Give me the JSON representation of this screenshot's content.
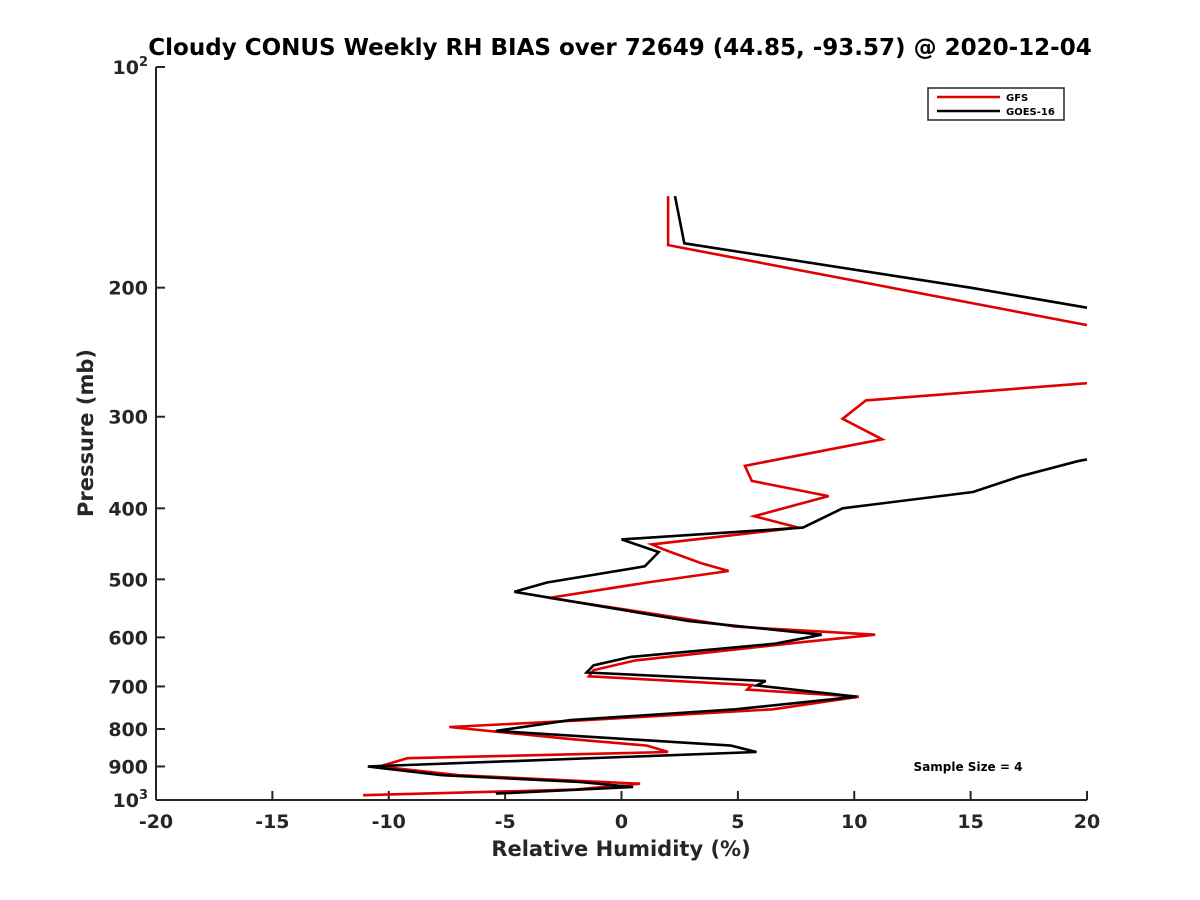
{
  "chart_data": {
    "type": "line",
    "title": "Cloudy CONUS Weekly RH BIAS over 72649 (44.85, -93.57) @ 2020-12-04",
    "xlabel": "Relative Humidity (%)",
    "ylabel": "Pressure (mb)",
    "xlim": [
      -20,
      20
    ],
    "ylim": [
      100,
      1000
    ],
    "yscale": "log",
    "y_reversed": true,
    "grid": false,
    "legend_position": "top-right",
    "x_ticks": [
      "-20",
      "-15",
      "-10",
      "-5",
      "0",
      "5",
      "10",
      "15",
      "20"
    ],
    "y_ticks": [
      {
        "value": 100,
        "base": "10",
        "exp": "2"
      },
      {
        "value": 200,
        "label": "200"
      },
      {
        "value": 300,
        "label": "300"
      },
      {
        "value": 400,
        "label": "400"
      },
      {
        "value": 500,
        "label": "500"
      },
      {
        "value": 600,
        "label": "600"
      },
      {
        "value": 700,
        "label": "700"
      },
      {
        "value": 800,
        "label": "800"
      },
      {
        "value": 900,
        "label": "900"
      },
      {
        "value": 1000,
        "base": "10",
        "exp": "3"
      }
    ],
    "annotation": "Sample Size = 4",
    "series": [
      {
        "name": "GFS",
        "color": "#e00000",
        "points": [
          [
            2,
            150
          ],
          [
            2,
            175
          ],
          [
            20,
            225
          ],
          [
            null,
            null
          ],
          [
            20,
            270
          ],
          [
            10.5,
            285
          ],
          [
            9.5,
            302
          ],
          [
            11.2,
            322
          ],
          [
            5.3,
            350
          ],
          [
            5.6,
            367
          ],
          [
            8.9,
            385
          ],
          [
            5.7,
            410
          ],
          [
            7.6,
            425
          ],
          [
            1.3,
            448
          ],
          [
            1.8,
            455
          ],
          [
            3.4,
            475
          ],
          [
            4.6,
            487
          ],
          [
            1.1,
            505
          ],
          [
            -3.1,
            530
          ],
          [
            1.8,
            560
          ],
          [
            4.9,
            580
          ],
          [
            10.9,
            595
          ],
          [
            7.6,
            610
          ],
          [
            0.6,
            645
          ],
          [
            -1.2,
            665
          ],
          [
            -1.4,
            678
          ],
          [
            5.6,
            697
          ],
          [
            5.4,
            707
          ],
          [
            10.2,
            723
          ],
          [
            6.5,
            752
          ],
          [
            -1.5,
            778
          ],
          [
            -7.4,
            795
          ],
          [
            -2.3,
            825
          ],
          [
            1.1,
            843
          ],
          [
            2.0,
            860
          ],
          [
            -9.2,
            877
          ],
          [
            -10.4,
            900
          ],
          [
            -7.0,
            925
          ],
          [
            0.8,
            950
          ],
          [
            -2.0,
            968
          ],
          [
            -11.1,
            985
          ]
        ]
      },
      {
        "name": "GOES-16",
        "color": "#000000",
        "points": [
          [
            2.3,
            150
          ],
          [
            2.7,
            174
          ],
          [
            15,
            200
          ],
          [
            20,
            213
          ],
          [
            null,
            null
          ],
          [
            20,
            343
          ],
          [
            19.6,
            345
          ],
          [
            17.1,
            362
          ],
          [
            15.1,
            380
          ],
          [
            9.5,
            400
          ],
          [
            7.8,
            425
          ],
          [
            0,
            441
          ],
          [
            1.6,
            459
          ],
          [
            1.0,
            480
          ],
          [
            -3.2,
            505
          ],
          [
            -4.6,
            520
          ],
          [
            2.9,
            570
          ],
          [
            8.6,
            595
          ],
          [
            6.6,
            612
          ],
          [
            0.4,
            638
          ],
          [
            -1.2,
            655
          ],
          [
            -1.5,
            670
          ],
          [
            6.2,
            688
          ],
          [
            5.8,
            698
          ],
          [
            10.1,
            723
          ],
          [
            4.9,
            752
          ],
          [
            -2.2,
            778
          ],
          [
            -5.4,
            805
          ],
          [
            4.7,
            843
          ],
          [
            5.8,
            860
          ],
          [
            -10.9,
            900
          ],
          [
            -7.7,
            925
          ],
          [
            -1.8,
            945
          ],
          [
            0.5,
            960
          ],
          [
            -5.4,
            980
          ]
        ]
      }
    ]
  }
}
